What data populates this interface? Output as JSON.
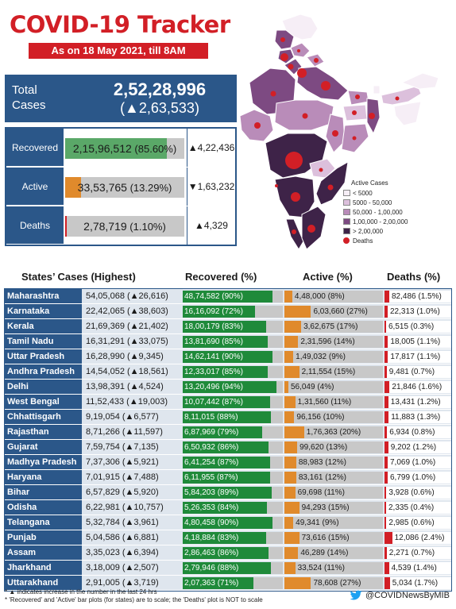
{
  "header": {
    "title": "COVID-19 Tracker",
    "subtitle": "As on 18 May 2021, till 8AM"
  },
  "total": {
    "label": "Total Cases",
    "value": "2,52,28,996",
    "change": "(▲2,63,533)"
  },
  "summary": [
    {
      "label": "Recovered",
      "value": "2,15,96,512",
      "pct_text": "(85.60%)",
      "pct": 85.6,
      "change": "▲4,22,436",
      "color": "#5aa868"
    },
    {
      "label": "Active",
      "value": "33,53,765",
      "pct_text": "(13.29%)",
      "pct": 13.29,
      "change": "▼1,63,232",
      "color": "#e08a2c"
    },
    {
      "label": "Deaths",
      "value": "2,78,719",
      "pct_text": "(1.10%)",
      "pct": 1.1,
      "change": "▲4,329",
      "color": "#d21f26"
    }
  ],
  "legend": {
    "title": "Active Cases",
    "items": [
      {
        "label": "< 5000",
        "color": "#f6eef6"
      },
      {
        "label": "5000 - 50,000",
        "color": "#dcc0dc"
      },
      {
        "label": "50,000 - 1,00,000",
        "color": "#b98cb9"
      },
      {
        "label": "1,00,000 - 2,00,000",
        "color": "#7d4a82"
      },
      {
        "label": "> 2,00,000",
        "color": "#3e2348"
      }
    ],
    "deaths_label": "Deaths"
  },
  "table_headers": {
    "states": "States’ Cases (Highest)",
    "recovered": "Recovered (%)",
    "active": "Active (%)",
    "deaths": "Deaths (%)"
  },
  "chart_data": {
    "type": "bar",
    "categories": [
      "Maharashtra",
      "Karnataka",
      "Kerala",
      "Tamil Nadu",
      "Uttar Pradesh",
      "Andhra Pradesh",
      "Delhi",
      "West Bengal",
      "Chhattisgarh",
      "Rajasthan",
      "Gujarat",
      "Madhya Pradesh",
      "Haryana",
      "Bihar",
      "Odisha",
      "Telangana",
      "Punjab",
      "Assam",
      "Jharkhand",
      "Uttarakhand"
    ],
    "rows": [
      {
        "state": "Maharashtra",
        "cases": "54,05,068",
        "cases_change": "(▲26,616)",
        "recovered": "48,74,582",
        "recovered_pct": 90,
        "active": "4,48,000",
        "active_pct": 8,
        "deaths": "82,486",
        "deaths_pct": 1.5
      },
      {
        "state": "Karnataka",
        "cases": "22,42,065",
        "cases_change": "(▲38,603)",
        "recovered": "16,16,092",
        "recovered_pct": 72,
        "active": "6,03,660",
        "active_pct": 27,
        "deaths": "22,313",
        "deaths_pct": 1.0
      },
      {
        "state": "Kerala",
        "cases": "21,69,369",
        "cases_change": "(▲21,402)",
        "recovered": "18,00,179",
        "recovered_pct": 83,
        "active": "3,62,675",
        "active_pct": 17,
        "deaths": "6,515",
        "deaths_pct": 0.3
      },
      {
        "state": "Tamil Nadu",
        "cases": "16,31,291",
        "cases_change": "(▲33,075)",
        "recovered": "13,81,690",
        "recovered_pct": 85,
        "active": "2,31,596",
        "active_pct": 14,
        "deaths": "18,005",
        "deaths_pct": 1.1
      },
      {
        "state": "Uttar Pradesh",
        "cases": "16,28,990",
        "cases_change": "(▲9,345)",
        "recovered": "14,62,141",
        "recovered_pct": 90,
        "active": "1,49,032",
        "active_pct": 9,
        "deaths": "17,817",
        "deaths_pct": 1.1
      },
      {
        "state": "Andhra Pradesh",
        "cases": "14,54,052",
        "cases_change": "(▲18,561)",
        "recovered": "12,33,017",
        "recovered_pct": 85,
        "active": "2,11,554",
        "active_pct": 15,
        "deaths": "9,481",
        "deaths_pct": 0.7
      },
      {
        "state": "Delhi",
        "cases": "13,98,391",
        "cases_change": "(▲4,524)",
        "recovered": "13,20,496",
        "recovered_pct": 94,
        "active": "56,049",
        "active_pct": 4,
        "deaths": "21,846",
        "deaths_pct": 1.6
      },
      {
        "state": "West Bengal",
        "cases": "11,52,433",
        "cases_change": "(▲19,003)",
        "recovered": "10,07,442",
        "recovered_pct": 87,
        "active": "1,31,560",
        "active_pct": 11,
        "deaths": "13,431",
        "deaths_pct": 1.2
      },
      {
        "state": "Chhattisgarh",
        "cases": "9,19,054",
        "cases_change": "(▲6,577)",
        "recovered": "8,11,015",
        "recovered_pct": 88,
        "active": "96,156",
        "active_pct": 10,
        "deaths": "11,883",
        "deaths_pct": 1.3
      },
      {
        "state": "Rajasthan",
        "cases": "8,71,266",
        "cases_change": "(▲11,597)",
        "recovered": "6,87,969",
        "recovered_pct": 79,
        "active": "1,76,363",
        "active_pct": 20,
        "deaths": "6,934",
        "deaths_pct": 0.8
      },
      {
        "state": "Gujarat",
        "cases": "7,59,754",
        "cases_change": "(▲7,135)",
        "recovered": "6,50,932",
        "recovered_pct": 86,
        "active": "99,620",
        "active_pct": 13,
        "deaths": "9,202",
        "deaths_pct": 1.2
      },
      {
        "state": "Madhya Pradesh",
        "cases": "7,37,306",
        "cases_change": "(▲5,921)",
        "recovered": "6,41,254",
        "recovered_pct": 87,
        "active": "88,983",
        "active_pct": 12,
        "deaths": "7,069",
        "deaths_pct": 1.0
      },
      {
        "state": "Haryana",
        "cases": "7,01,915",
        "cases_change": "(▲7,488)",
        "recovered": "6,11,955",
        "recovered_pct": 87,
        "active": "83,161",
        "active_pct": 12,
        "deaths": "6,799",
        "deaths_pct": 1.0
      },
      {
        "state": "Bihar",
        "cases": "6,57,829",
        "cases_change": "(▲5,920)",
        "recovered": "5,84,203",
        "recovered_pct": 89,
        "active": "69,698",
        "active_pct": 11,
        "deaths": "3,928",
        "deaths_pct": 0.6
      },
      {
        "state": "Odisha",
        "cases": "6,22,981",
        "cases_change": "(▲10,757)",
        "recovered": "5,26,353",
        "recovered_pct": 84,
        "active": "94,293",
        "active_pct": 15,
        "deaths": "2,335",
        "deaths_pct": 0.4
      },
      {
        "state": "Telangana",
        "cases": "5,32,784",
        "cases_change": "(▲3,961)",
        "recovered": "4,80,458",
        "recovered_pct": 90,
        "active": "49,341",
        "active_pct": 9,
        "deaths": "2,985",
        "deaths_pct": 0.6
      },
      {
        "state": "Punjab",
        "cases": "5,04,586",
        "cases_change": "(▲6,881)",
        "recovered": "4,18,884",
        "recovered_pct": 83,
        "active": "73,616",
        "active_pct": 15,
        "deaths": "12,086",
        "deaths_pct": 2.4
      },
      {
        "state": "Assam",
        "cases": "3,35,023",
        "cases_change": "(▲6,394)",
        "recovered": "2,86,463",
        "recovered_pct": 86,
        "active": "46,289",
        "active_pct": 14,
        "deaths": "2,271",
        "deaths_pct": 0.7
      },
      {
        "state": "Jharkhand",
        "cases": "3,18,009",
        "cases_change": "(▲2,507)",
        "recovered": "2,79,946",
        "recovered_pct": 88,
        "active": "33,524",
        "active_pct": 11,
        "deaths": "4,539",
        "deaths_pct": 1.4
      },
      {
        "state": "Uttarakhand",
        "cases": "2,91,005",
        "cases_change": "(▲3,719)",
        "recovered": "2,07,363",
        "recovered_pct": 71,
        "active": "78,608",
        "active_pct": 27,
        "deaths": "5,034",
        "deaths_pct": 1.7
      }
    ]
  },
  "footnotes": {
    "line1": "* ▲ indicates increase in the number in the last 24 hrs",
    "line2": "* 'Recovered' and 'Active' bar plots (for states) are to scale; the 'Deaths' plot is NOT to scale"
  },
  "handle": "@COVIDNewsByMIB",
  "colors": {
    "brand_red": "#d21f26",
    "navy": "#2b5789",
    "recovered_green": "#1f8a3a",
    "active_orange": "#e08a2c",
    "bar_grey": "#c8c8c8"
  }
}
